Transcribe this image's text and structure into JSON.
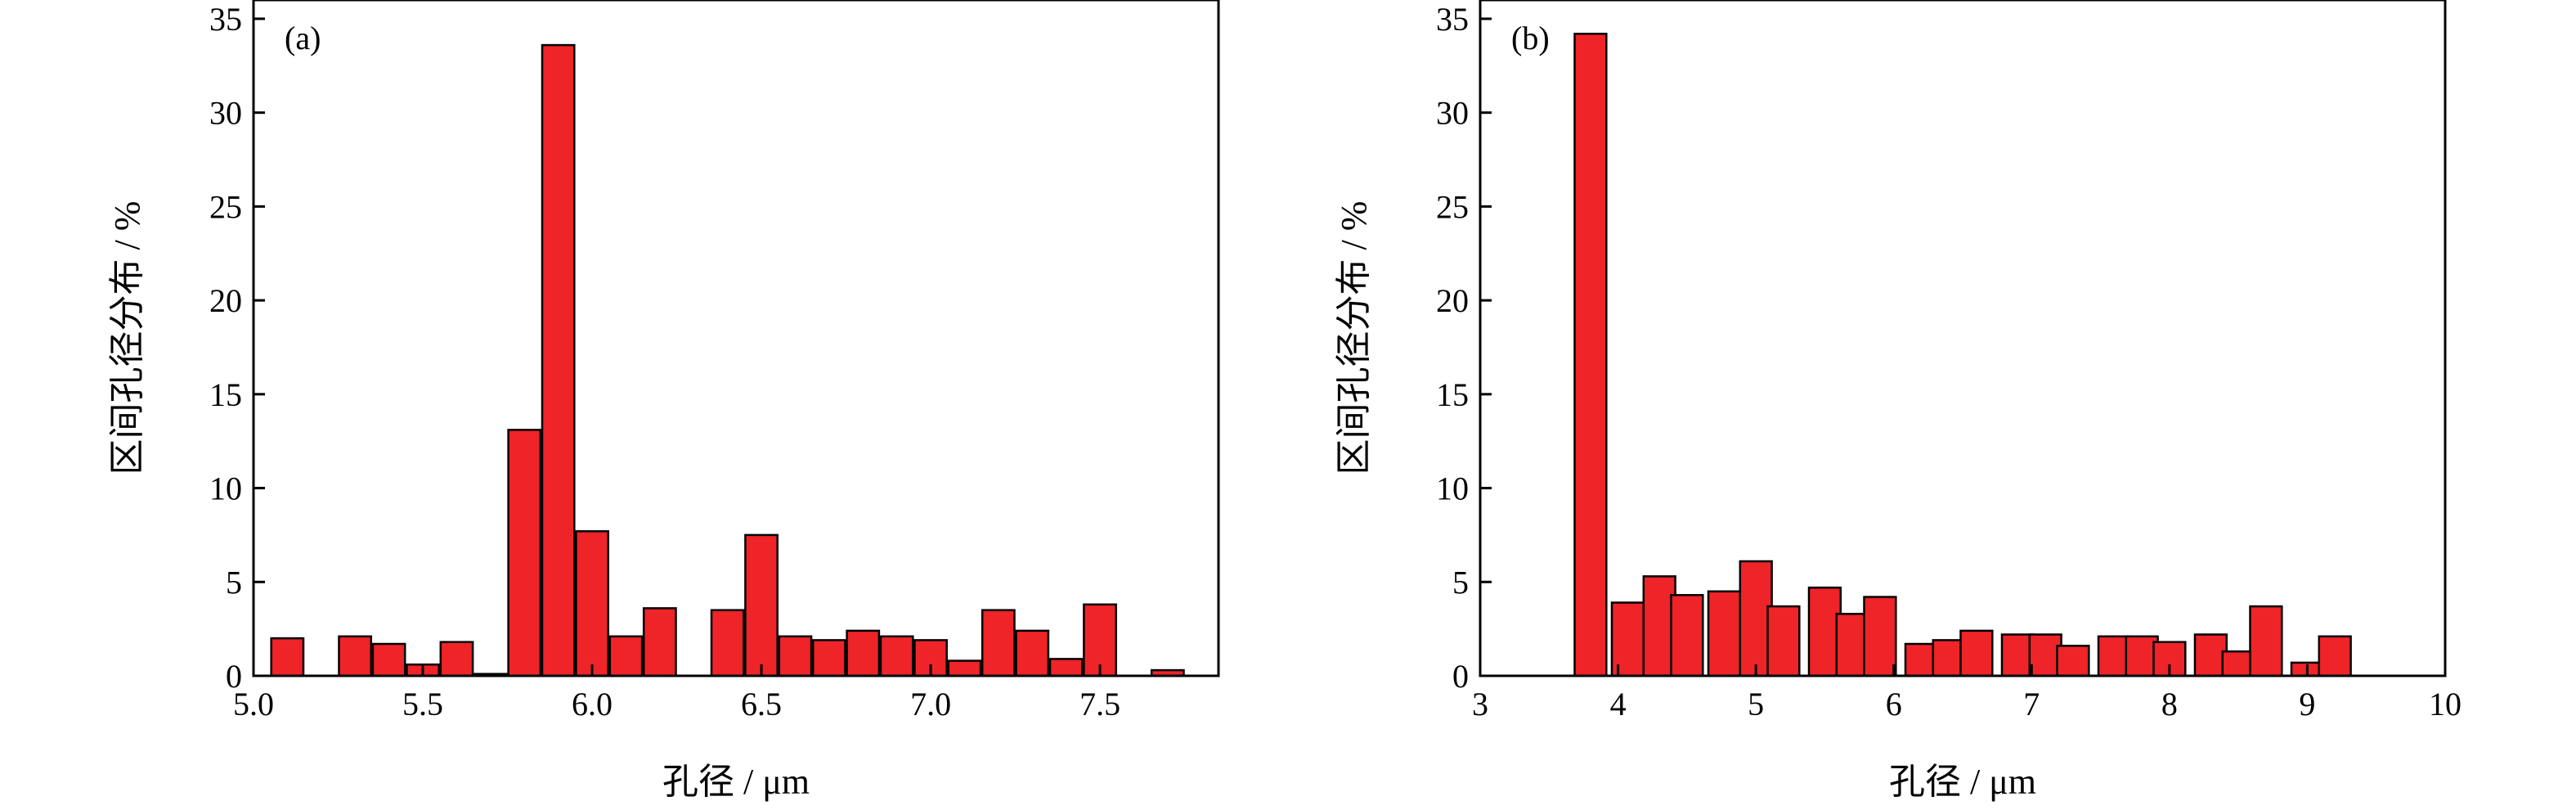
{
  "chart_data": [
    {
      "type": "bar",
      "panel": "(a)",
      "xlabel": "孔径 / μm",
      "ylabel": "区间孔径分布 / %",
      "xlim": [
        5.0,
        7.85
      ],
      "ylim": [
        0,
        36
      ],
      "xticks": [
        "5.0",
        "5.5",
        "6.0",
        "6.5",
        "7.0",
        "7.5"
      ],
      "yticks": [
        "0",
        "5",
        "10",
        "15",
        "20",
        "25",
        "30",
        "35"
      ],
      "bar_color": "#EE2428",
      "bar_width": 0.095,
      "x": [
        5.1,
        5.3,
        5.4,
        5.5,
        5.6,
        5.7,
        5.8,
        5.9,
        6.0,
        6.1,
        6.2,
        6.4,
        6.5,
        6.6,
        6.7,
        6.8,
        6.9,
        7.0,
        7.1,
        7.2,
        7.3,
        7.4,
        7.5,
        7.7
      ],
      "values": [
        2.0,
        2.1,
        1.7,
        0.6,
        1.8,
        0.1,
        13.1,
        33.6,
        7.7,
        2.1,
        3.6,
        3.5,
        7.5,
        2.1,
        1.9,
        2.4,
        2.1,
        1.9,
        0.8,
        3.5,
        2.4,
        0.9,
        3.8,
        0.3
      ]
    },
    {
      "type": "bar",
      "panel": "(b)",
      "xlabel": "孔径 / μm",
      "ylabel": "区间孔径分布 / %",
      "xlim": [
        3,
        10
      ],
      "ylim": [
        0,
        36
      ],
      "xticks": [
        "3",
        "4",
        "5",
        "6",
        "7",
        "8",
        "9",
        "10"
      ],
      "yticks": [
        "0",
        "5",
        "10",
        "15",
        "20",
        "25",
        "30",
        "35"
      ],
      "bar_color": "#EE2428",
      "bar_width": 0.23,
      "x": [
        3.8,
        4.07,
        4.3,
        4.5,
        4.77,
        5.0,
        5.2,
        5.5,
        5.7,
        5.9,
        6.2,
        6.4,
        6.6,
        6.9,
        7.1,
        7.3,
        7.6,
        7.8,
        8.0,
        8.3,
        8.5,
        8.7,
        9.0,
        9.2
      ],
      "values": [
        34.2,
        3.9,
        5.3,
        4.3,
        4.5,
        6.1,
        3.7,
        4.7,
        3.3,
        4.2,
        1.7,
        1.9,
        2.4,
        2.2,
        2.2,
        1.6,
        2.1,
        2.1,
        1.8,
        2.2,
        1.3,
        3.7,
        0.7,
        2.1
      ]
    }
  ]
}
